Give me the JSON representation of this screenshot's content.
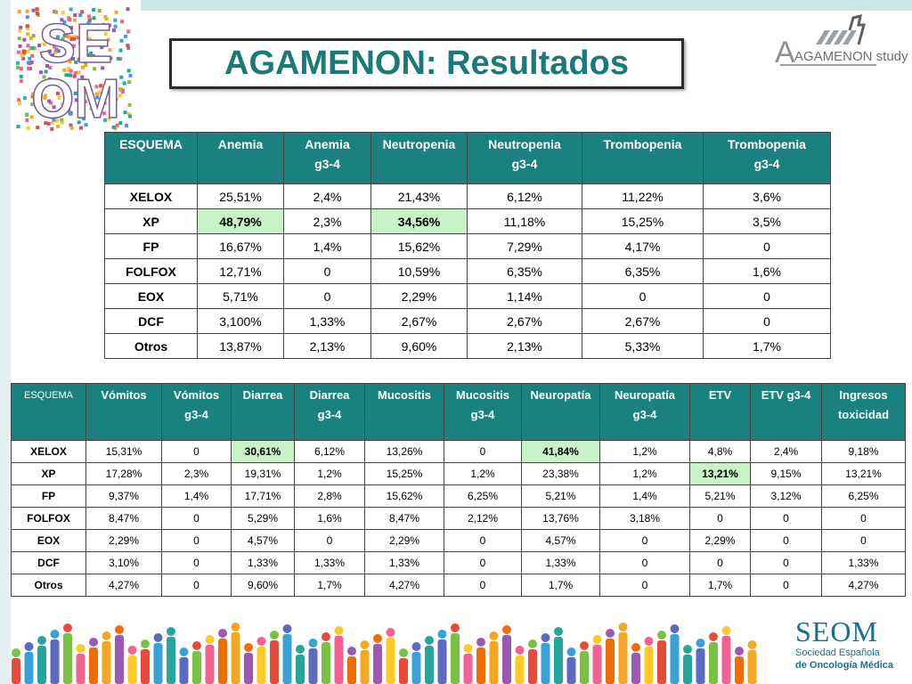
{
  "title": "AGAMENON: Resultados",
  "logos": {
    "seom_top": {
      "line1": "SE",
      "line2": "OM"
    },
    "agamenon": "AGAMENON study",
    "seom_bottom": {
      "name": "SEOM",
      "line1": "Sociedad Española",
      "line2": "de Oncología Médica"
    }
  },
  "table1": {
    "headers": [
      [
        "ESQUEMA"
      ],
      [
        "Anemia"
      ],
      [
        "Anemia",
        "g3-4"
      ],
      [
        "Neutropenia"
      ],
      [
        "Neutropenia",
        "g3-4"
      ],
      [
        "Trombopenia"
      ],
      [
        "Trombopenia",
        "g3-4"
      ]
    ],
    "rows": [
      [
        "XELOX",
        "25,51%",
        "2,4%",
        "21,43%",
        "6,12%",
        "11,22%",
        "3,6%"
      ],
      [
        "XP",
        "48,79%",
        "2,3%",
        "34,56%",
        "11,18%",
        "15,25%",
        "3,5%"
      ],
      [
        "FP",
        "16,67%",
        "1,4%",
        "15,62%",
        "7,29%",
        "4,17%",
        "0"
      ],
      [
        "FOLFOX",
        "12,71%",
        "0",
        "10,59%",
        "6,35%",
        "6,35%",
        "1,6%"
      ],
      [
        "EOX",
        "5,71%",
        "0",
        "2,29%",
        "1,14%",
        "0",
        "0"
      ],
      [
        "DCF",
        "3,100%",
        "1,33%",
        "2,67%",
        "2,67%",
        "2,67%",
        "0"
      ],
      [
        "Otros",
        "13,87%",
        "2,13%",
        "9,60%",
        "2,13%",
        "5,33%",
        "1,7%"
      ]
    ],
    "highlighted_cells": [
      [
        1,
        1
      ],
      [
        1,
        3
      ]
    ],
    "highlight_color": "#c6f2c6"
  },
  "table2": {
    "headers": [
      [
        "ESQUEMA"
      ],
      [
        "Vómitos"
      ],
      [
        "Vómitos",
        "g3-4"
      ],
      [
        "Diarrea"
      ],
      [
        "Diarrea",
        "g3-4"
      ],
      [
        "Mucositis"
      ],
      [
        "Mucositis",
        "g3-4"
      ],
      [
        "Neuropatía"
      ],
      [
        "Neuropatía",
        "g3-4"
      ],
      [
        "ETV"
      ],
      [
        "ETV g3-4"
      ],
      [
        "Ingresos",
        "toxicidad"
      ]
    ],
    "rows": [
      [
        "XELOX",
        "15,31%",
        "0",
        "30,61%",
        "6,12%",
        "13,26%",
        "0",
        "41,84%",
        "1,2%",
        "4,8%",
        "2,4%",
        "9,18%"
      ],
      [
        "XP",
        "17,28%",
        "2,3%",
        "19,31%",
        "1,2%",
        "15,25%",
        "1,2%",
        "23,38%",
        "1,2%",
        "13,21%",
        "9,15%",
        "13,21%"
      ],
      [
        "FP",
        "9,37%",
        "1,4%",
        "17,71%",
        "2,8%",
        "15,62%",
        "6,25%",
        "5,21%",
        "1,4%",
        "5,21%",
        "3,12%",
        "6,25%"
      ],
      [
        "FOLFOX",
        "8,47%",
        "0",
        "5,29%",
        "1,6%",
        "8,47%",
        "2,12%",
        "13,76%",
        "3,18%",
        "0",
        "0",
        "0"
      ],
      [
        "EOX",
        "2,29%",
        "0",
        "4,57%",
        "0",
        "2,29%",
        "0",
        "4,57%",
        "0",
        "2,29%",
        "0",
        "0"
      ],
      [
        "DCF",
        "3,10%",
        "0",
        "1,33%",
        "1,33%",
        "1,33%",
        "0",
        "1,33%",
        "0",
        "0",
        "0",
        "1,33%"
      ],
      [
        "Otros",
        "4,27%",
        "0",
        "9,60%",
        "1,7%",
        "4,27%",
        "0",
        "1,7%",
        "0",
        "1,7%",
        "0",
        "4,27%"
      ]
    ],
    "highlighted_cells": [
      [
        0,
        3
      ],
      [
        0,
        7
      ],
      [
        1,
        9
      ]
    ],
    "highlight_color": "#c6f2c6"
  },
  "colors": {
    "header_bg": "#1b8080",
    "title": "#1a7a78",
    "seom_blue": "#1a6f8c"
  }
}
